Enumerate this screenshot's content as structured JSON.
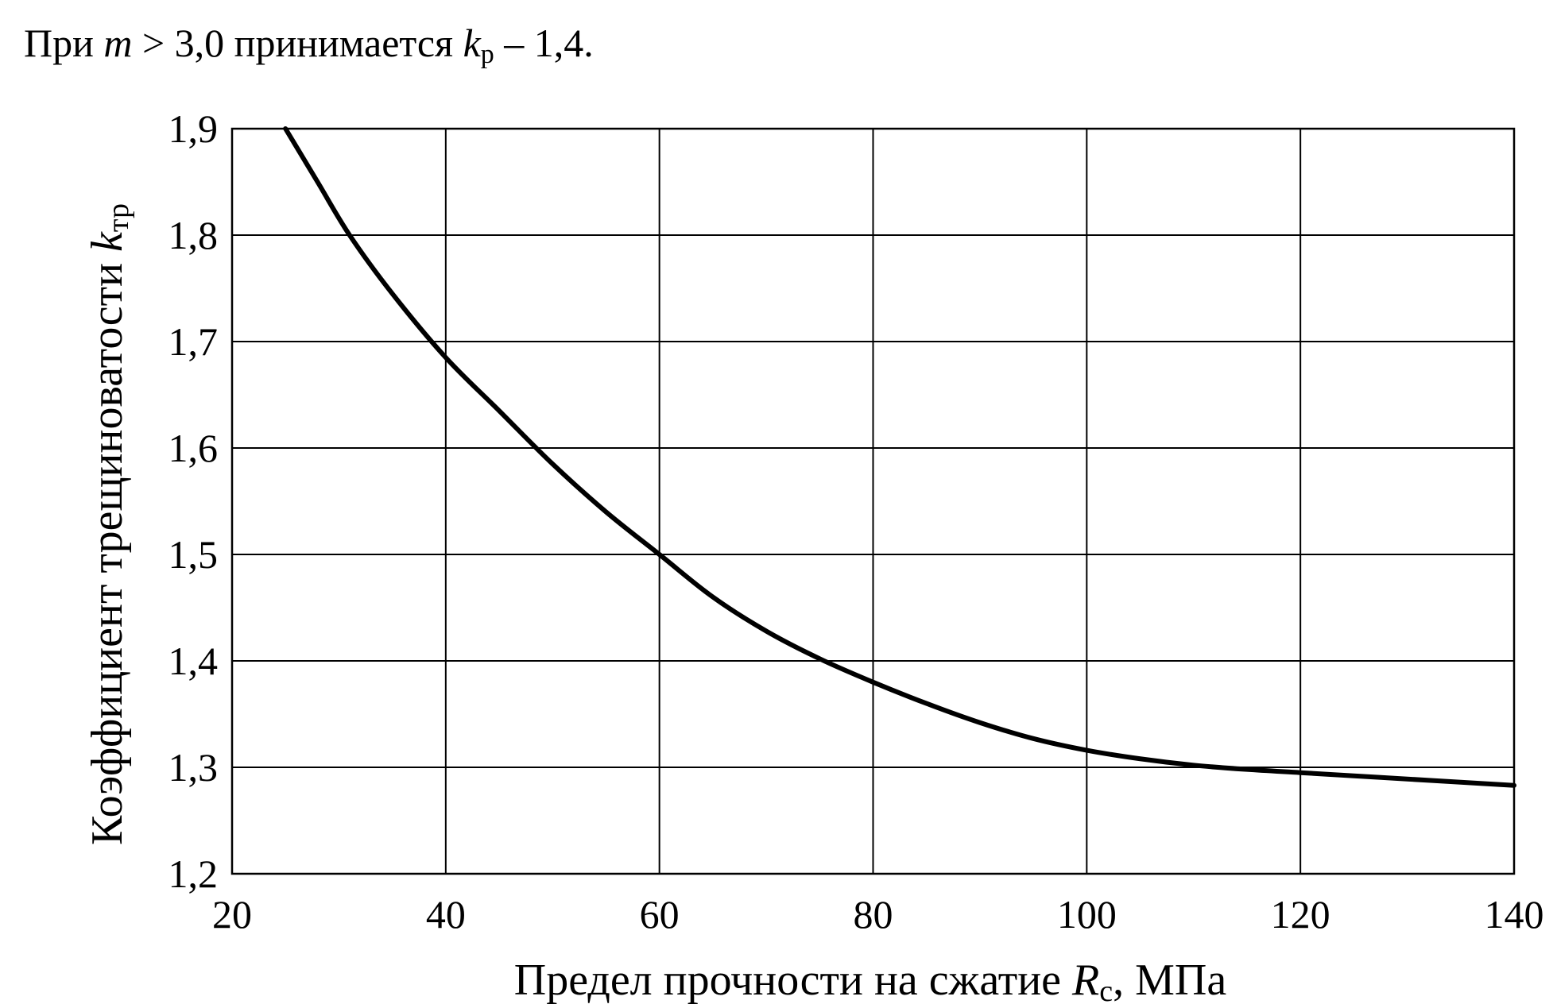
{
  "intro": {
    "part1": "При ",
    "var_m": "m",
    "part2": " > 3,0 принимается ",
    "var_k": "k",
    "sub_k": "р",
    "part3": " – 1,4."
  },
  "chart_data": {
    "type": "line",
    "title": "",
    "xlabel": {
      "text": "Предел прочности на сжатие ",
      "var": "R",
      "sub": "с",
      "suffix": ", МПа"
    },
    "ylabel": {
      "text": "Коэффициент трещиноватости ",
      "var": "k",
      "sub": "тр"
    },
    "xlim": [
      20,
      140
    ],
    "ylim": [
      1.2,
      1.9
    ],
    "x_ticks": [
      20,
      40,
      60,
      80,
      100,
      120,
      140
    ],
    "x_tick_labels": [
      "20",
      "40",
      "60",
      "80",
      "100",
      "120",
      "140"
    ],
    "y_ticks": [
      1.2,
      1.3,
      1.4,
      1.5,
      1.6,
      1.7,
      1.8,
      1.9
    ],
    "y_tick_labels": [
      "1,2",
      "1,3",
      "1,4",
      "1,5",
      "1,6",
      "1,7",
      "1,8",
      "1,9"
    ],
    "grid": true,
    "legend": "none",
    "series": [
      {
        "x": [
          25,
          28,
          31,
          35,
          40,
          45,
          50,
          55,
          60,
          65,
          70,
          75,
          80,
          85,
          90,
          95,
          100,
          105,
          110,
          115,
          120,
          125,
          130,
          135,
          140
        ],
        "y": [
          1.9,
          1.85,
          1.8,
          1.745,
          1.685,
          1.635,
          1.585,
          1.54,
          1.5,
          1.46,
          1.428,
          1.402,
          1.38,
          1.36,
          1.342,
          1.327,
          1.316,
          1.308,
          1.302,
          1.298,
          1.295,
          1.292,
          1.289,
          1.286,
          1.283
        ]
      }
    ]
  }
}
